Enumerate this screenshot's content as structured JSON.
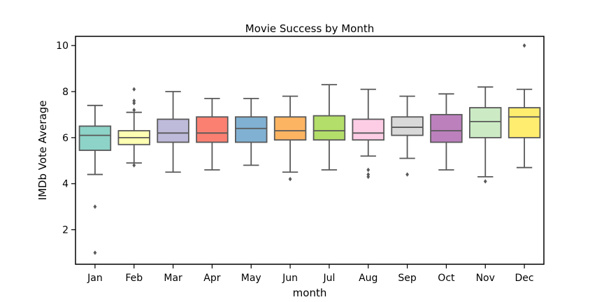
{
  "chart_data": {
    "type": "box",
    "title": "Movie Success by Month",
    "xlabel": "month",
    "ylabel": "IMDb Vote Average",
    "ylim": [
      0.5,
      10.4
    ],
    "yticks": [
      2,
      4,
      6,
      8,
      10
    ],
    "ytick_labels": [
      "2",
      "4",
      "6",
      "8",
      "10"
    ],
    "grid": false,
    "categories": [
      "Jan",
      "Feb",
      "Mar",
      "Apr",
      "May",
      "Jun",
      "Jul",
      "Aug",
      "Sep",
      "Oct",
      "Nov",
      "Dec"
    ],
    "colors": [
      "#8dd3c7",
      "#ffffb3",
      "#bebada",
      "#fb8072",
      "#80b1d3",
      "#fdb462",
      "#b3de69",
      "#fccde5",
      "#d9d9d9",
      "#bc80bd",
      "#ccebc5",
      "#ffed6f"
    ],
    "boxes": [
      {
        "whisker_low": 4.4,
        "q1": 5.45,
        "median": 6.1,
        "q3": 6.5,
        "whisker_high": 7.4,
        "outliers": [
          3.0,
          1.0
        ]
      },
      {
        "whisker_low": 4.9,
        "q1": 5.7,
        "median": 6.0,
        "q3": 6.3,
        "whisker_high": 7.1,
        "outliers": [
          8.1,
          7.6,
          7.5,
          7.2,
          4.8
        ]
      },
      {
        "whisker_low": 4.5,
        "q1": 5.8,
        "median": 6.2,
        "q3": 6.8,
        "whisker_high": 8.0,
        "outliers": []
      },
      {
        "whisker_low": 4.6,
        "q1": 5.8,
        "median": 6.2,
        "q3": 6.9,
        "whisker_high": 7.7,
        "outliers": []
      },
      {
        "whisker_low": 4.8,
        "q1": 5.8,
        "median": 6.4,
        "q3": 6.9,
        "whisker_high": 7.7,
        "outliers": []
      },
      {
        "whisker_low": 4.5,
        "q1": 5.9,
        "median": 6.3,
        "q3": 6.9,
        "whisker_high": 7.8,
        "outliers": [
          4.2
        ]
      },
      {
        "whisker_low": 4.6,
        "q1": 5.9,
        "median": 6.3,
        "q3": 6.95,
        "whisker_high": 8.3,
        "outliers": []
      },
      {
        "whisker_low": 5.2,
        "q1": 5.9,
        "median": 6.2,
        "q3": 6.8,
        "whisker_high": 8.1,
        "outliers": [
          4.6,
          4.4,
          4.3
        ]
      },
      {
        "whisker_low": 5.1,
        "q1": 6.1,
        "median": 6.45,
        "q3": 6.9,
        "whisker_high": 7.8,
        "outliers": [
          4.4
        ]
      },
      {
        "whisker_low": 4.6,
        "q1": 5.8,
        "median": 6.3,
        "q3": 7.0,
        "whisker_high": 7.9,
        "outliers": []
      },
      {
        "whisker_low": 4.3,
        "q1": 6.0,
        "median": 6.7,
        "q3": 7.3,
        "whisker_high": 8.2,
        "outliers": [
          4.1
        ]
      },
      {
        "whisker_low": 4.7,
        "q1": 6.0,
        "median": 6.9,
        "q3": 7.3,
        "whisker_high": 8.1,
        "outliers": [
          10.0
        ]
      }
    ]
  }
}
